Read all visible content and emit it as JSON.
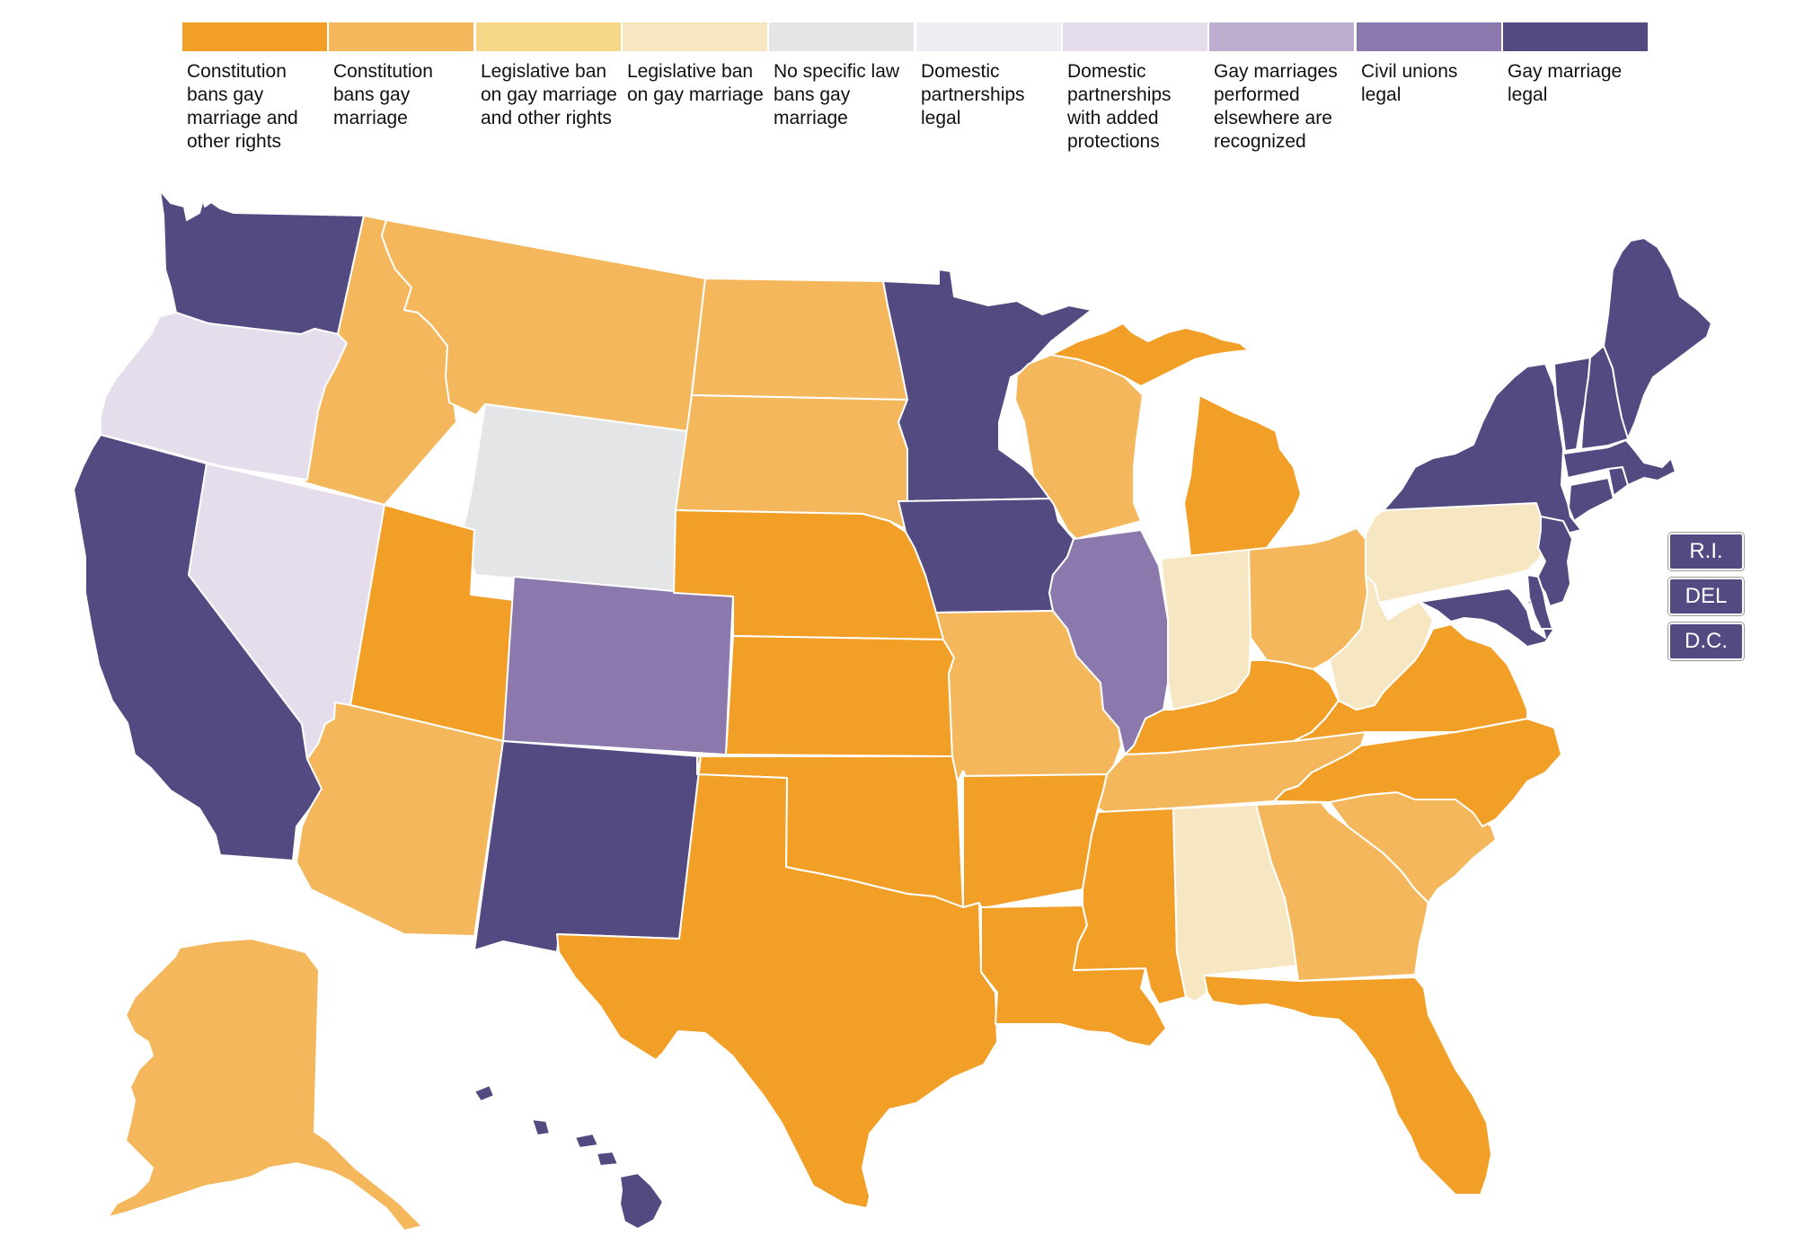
{
  "legend": [
    {
      "label": "Constitution bans gay marriage and other rights",
      "color": "#f29f27"
    },
    {
      "label": "Constitution bans gay marriage",
      "color": "#f4b75b"
    },
    {
      "label": "Legislative ban on gay marriage and other rights",
      "color": "#f7d889"
    },
    {
      "label": "Legislative ban on gay marriage",
      "color": "#f6e6c1"
    },
    {
      "label": "No specific law bans gay marriage",
      "color": "#e4e5e6"
    },
    {
      "label": "Domestic partnerships legal",
      "color": "#f1edf5"
    },
    {
      "label": "Domestic partnerships with added protections",
      "color": "#e5dcec"
    },
    {
      "label": "Gay marriages performed elsewhere are recognized",
      "color": "#bcadd1"
    },
    {
      "label": "Civil unions legal",
      "color": "#8b78ad"
    },
    {
      "label": "Gay marriage legal",
      "color": "#534a82"
    }
  ],
  "small_states": [
    {
      "label": "R.I.",
      "color": "#534a82"
    },
    {
      "label": "DEL",
      "color": "#534a82"
    },
    {
      "label": "D.C.",
      "color": "#534a82"
    }
  ],
  "map": {
    "states": [
      {
        "name": "Washington",
        "status": 9
      },
      {
        "name": "Oregon",
        "status": 6
      },
      {
        "name": "California",
        "status": 9
      },
      {
        "name": "Nevada",
        "status": 6
      },
      {
        "name": "Idaho",
        "status": 1
      },
      {
        "name": "Montana",
        "status": 1
      },
      {
        "name": "Wyoming",
        "status": 4
      },
      {
        "name": "Utah",
        "status": 0
      },
      {
        "name": "Arizona",
        "status": 1
      },
      {
        "name": "Colorado",
        "status": 8
      },
      {
        "name": "New Mexico",
        "status": 9
      },
      {
        "name": "North Dakota",
        "status": 1
      },
      {
        "name": "South Dakota",
        "status": 1
      },
      {
        "name": "Nebraska",
        "status": 0
      },
      {
        "name": "Kansas",
        "status": 0
      },
      {
        "name": "Oklahoma",
        "status": 0
      },
      {
        "name": "Texas",
        "status": 0
      },
      {
        "name": "Minnesota",
        "status": 9
      },
      {
        "name": "Iowa",
        "status": 9
      },
      {
        "name": "Missouri",
        "status": 1
      },
      {
        "name": "Arkansas",
        "status": 0
      },
      {
        "name": "Louisiana",
        "status": 0
      },
      {
        "name": "Wisconsin",
        "status": 1
      },
      {
        "name": "Illinois",
        "status": 8
      },
      {
        "name": "Michigan",
        "status": 0
      },
      {
        "name": "Indiana",
        "status": 3
      },
      {
        "name": "Ohio",
        "status": 1
      },
      {
        "name": "Kentucky",
        "status": 0
      },
      {
        "name": "Tennessee",
        "status": 1
      },
      {
        "name": "Mississippi",
        "status": 0
      },
      {
        "name": "Alabama",
        "status": 3
      },
      {
        "name": "Georgia",
        "status": 1
      },
      {
        "name": "Florida",
        "status": 0
      },
      {
        "name": "South Carolina",
        "status": 1
      },
      {
        "name": "North Carolina",
        "status": 0
      },
      {
        "name": "Virginia",
        "status": 0
      },
      {
        "name": "West Virginia",
        "status": 3
      },
      {
        "name": "Pennsylvania",
        "status": 3
      },
      {
        "name": "New York",
        "status": 9
      },
      {
        "name": "New Jersey",
        "status": 9
      },
      {
        "name": "Maryland",
        "status": 9
      },
      {
        "name": "Delaware",
        "status": 9
      },
      {
        "name": "Connecticut",
        "status": 9
      },
      {
        "name": "Rhode Island",
        "status": 9
      },
      {
        "name": "Massachusetts",
        "status": 9
      },
      {
        "name": "Vermont",
        "status": 9
      },
      {
        "name": "New Hampshire",
        "status": 9
      },
      {
        "name": "Maine",
        "status": 9
      },
      {
        "name": "Alaska",
        "status": 1
      },
      {
        "name": "Hawaii",
        "status": 9
      }
    ]
  }
}
